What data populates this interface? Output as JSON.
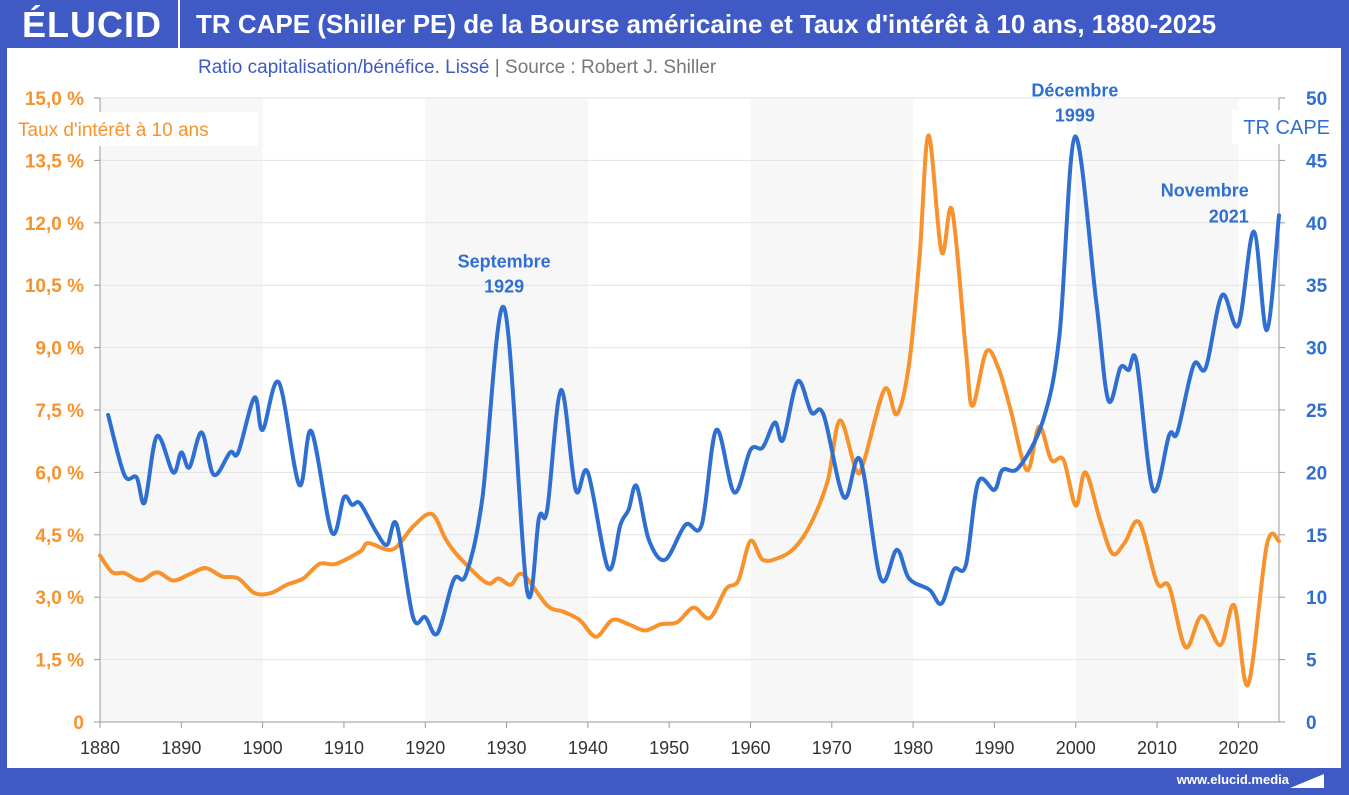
{
  "header": {
    "logo": "ÉLUCID",
    "title": "TR CAPE (Shiller PE) de la Bourse américaine et Taux d'intérêt à 10 ans, 1880-2025",
    "subtitle": "Ratio capitalisation/bénéfice. Lissé",
    "separator": "|",
    "source": "Source : Robert J. Shiller"
  },
  "footer": {
    "url": "www.elucid.media"
  },
  "colors": {
    "brand": "#3f5ac4",
    "cape": "#2f6fd1",
    "rate": "#f7922c",
    "band": "#f7f7f7",
    "grid": "#e3e3e3"
  },
  "chart_data": {
    "type": "line",
    "title": "TR CAPE (Shiller PE) de la Bourse américaine et Taux d'intérêt à 10 ans, 1880-2025",
    "xlim": [
      1880,
      2025
    ],
    "x_ticks": [
      "1880",
      "1890",
      "1900",
      "1910",
      "1920",
      "1930",
      "1940",
      "1950",
      "1960",
      "1970",
      "1980",
      "1990",
      "2000",
      "2010",
      "2020"
    ],
    "y_left": {
      "label": "Taux d'intérêt à 10 ans",
      "lim": [
        0,
        15
      ],
      "ticks": [
        "0",
        "1,5 %",
        "3,0 %",
        "4,5 %",
        "6,0 %",
        "7,5 %",
        "9,0 %",
        "10,5 %",
        "12,0 %",
        "13,5 %",
        "15,0 %"
      ]
    },
    "y_right": {
      "label": "TR CAPE",
      "lim": [
        0,
        50
      ],
      "ticks": [
        "0",
        "5",
        "10",
        "15",
        "20",
        "25",
        "30",
        "35",
        "40",
        "45",
        "50"
      ]
    },
    "grid": true,
    "shaded_periods": [
      [
        1880,
        1900
      ],
      [
        1920,
        1940
      ],
      [
        1960,
        1980
      ],
      [
        2000,
        2020
      ]
    ],
    "annotations": [
      {
        "line1": "Septembre",
        "line2": "1929",
        "year": 1929.7,
        "value": 33.2
      },
      {
        "line1": "Décembre",
        "line2": "1999",
        "year": 1999.9,
        "value": 46.9
      },
      {
        "line1": "Novembre",
        "line2": "2021",
        "year": 2021.9,
        "value": 39.3
      }
    ],
    "series": [
      {
        "name": "TR CAPE",
        "axis": "right",
        "points": [
          [
            1881,
            24.6
          ],
          [
            1883,
            19.8
          ],
          [
            1884.5,
            19.6
          ],
          [
            1885.5,
            17.6
          ],
          [
            1887,
            22.9
          ],
          [
            1889,
            20
          ],
          [
            1890,
            21.6
          ],
          [
            1891,
            20.4
          ],
          [
            1892.5,
            23.2
          ],
          [
            1894,
            19.8
          ],
          [
            1896,
            21.6
          ],
          [
            1897,
            21.6
          ],
          [
            1899,
            26
          ],
          [
            1900,
            23.4
          ],
          [
            1902,
            27.2
          ],
          [
            1904.5,
            19
          ],
          [
            1906,
            23.3
          ],
          [
            1908.5,
            15.2
          ],
          [
            1910,
            18
          ],
          [
            1911,
            17.4
          ],
          [
            1912,
            17.5
          ],
          [
            1914,
            15.2
          ],
          [
            1915.3,
            14.2
          ],
          [
            1916.5,
            15.8
          ],
          [
            1918.5,
            8.4
          ],
          [
            1920,
            8.4
          ],
          [
            1921.5,
            7.1
          ],
          [
            1923.5,
            11.4
          ],
          [
            1925,
            11.8
          ],
          [
            1927,
            17.8
          ],
          [
            1929.7,
            33.2
          ],
          [
            1932.5,
            10.6
          ],
          [
            1934,
            16.4
          ],
          [
            1935,
            17
          ],
          [
            1936.7,
            26.6
          ],
          [
            1938.5,
            18.6
          ],
          [
            1940,
            20
          ],
          [
            1942.5,
            12.3
          ],
          [
            1944,
            15.8
          ],
          [
            1945,
            17
          ],
          [
            1946,
            18.9
          ],
          [
            1947.5,
            14.6
          ],
          [
            1949.5,
            13
          ],
          [
            1952,
            15.8
          ],
          [
            1954,
            15.8
          ],
          [
            1955.8,
            23.4
          ],
          [
            1958,
            18.4
          ],
          [
            1960,
            21.8
          ],
          [
            1961.5,
            22
          ],
          [
            1963,
            24
          ],
          [
            1964,
            22.6
          ],
          [
            1965.8,
            27.3
          ],
          [
            1967.5,
            24.8
          ],
          [
            1969,
            24.6
          ],
          [
            1971.5,
            18
          ],
          [
            1973.5,
            21
          ],
          [
            1976,
            11.5
          ],
          [
            1978,
            13.8
          ],
          [
            1979.5,
            11.5
          ],
          [
            1982,
            10.6
          ],
          [
            1983.5,
            9.5
          ],
          [
            1985,
            12.2
          ],
          [
            1986.5,
            12.6
          ],
          [
            1988,
            19.2
          ],
          [
            1990,
            18.6
          ],
          [
            1991,
            20.2
          ],
          [
            1993,
            20.4
          ],
          [
            1996,
            24.2
          ],
          [
            1998,
            31
          ],
          [
            1999.9,
            46.9
          ],
          [
            2002.5,
            33.8
          ],
          [
            2004,
            25.8
          ],
          [
            2005.5,
            28.4
          ],
          [
            2006.5,
            28.2
          ],
          [
            2007.5,
            28.8
          ],
          [
            2009.5,
            18.6
          ],
          [
            2011.5,
            23
          ],
          [
            2012.5,
            23.2
          ],
          [
            2014.5,
            28.6
          ],
          [
            2016,
            28.4
          ],
          [
            2018,
            34.2
          ],
          [
            2020,
            31.8
          ],
          [
            2021.9,
            39.3
          ],
          [
            2023.5,
            31.4
          ],
          [
            2025,
            40.6
          ]
        ]
      },
      {
        "name": "Taux d'intérêt à 10 ans",
        "axis": "left",
        "points": [
          [
            1880,
            4.0
          ],
          [
            1881.5,
            3.6
          ],
          [
            1883,
            3.58
          ],
          [
            1885,
            3.4
          ],
          [
            1887,
            3.6
          ],
          [
            1889,
            3.4
          ],
          [
            1891,
            3.55
          ],
          [
            1893,
            3.7
          ],
          [
            1895,
            3.5
          ],
          [
            1897,
            3.45
          ],
          [
            1899,
            3.1
          ],
          [
            1901,
            3.1
          ],
          [
            1903,
            3.3
          ],
          [
            1905,
            3.45
          ],
          [
            1907,
            3.8
          ],
          [
            1909,
            3.8
          ],
          [
            1912,
            4.1
          ],
          [
            1913,
            4.3
          ],
          [
            1916,
            4.15
          ],
          [
            1918.5,
            4.7
          ],
          [
            1920.8,
            5.0
          ],
          [
            1922.5,
            4.4
          ],
          [
            1924,
            4.0
          ],
          [
            1927.5,
            3.35
          ],
          [
            1929,
            3.45
          ],
          [
            1930.5,
            3.3
          ],
          [
            1932,
            3.55
          ],
          [
            1935,
            2.8
          ],
          [
            1937,
            2.65
          ],
          [
            1939,
            2.45
          ],
          [
            1941,
            2.05
          ],
          [
            1943,
            2.45
          ],
          [
            1945,
            2.35
          ],
          [
            1947,
            2.2
          ],
          [
            1949,
            2.35
          ],
          [
            1951,
            2.4
          ],
          [
            1953,
            2.75
          ],
          [
            1955,
            2.5
          ],
          [
            1957,
            3.2
          ],
          [
            1958.5,
            3.4
          ],
          [
            1960,
            4.35
          ],
          [
            1961.5,
            3.9
          ],
          [
            1963.5,
            3.95
          ],
          [
            1965.5,
            4.2
          ],
          [
            1967.5,
            4.8
          ],
          [
            1969.5,
            5.8
          ],
          [
            1971,
            7.25
          ],
          [
            1973,
            6.05
          ],
          [
            1974,
            6.3
          ],
          [
            1976.5,
            8.0
          ],
          [
            1978,
            7.4
          ],
          [
            1979.5,
            8.6
          ],
          [
            1980.8,
            11.2
          ],
          [
            1981.9,
            14.1
          ],
          [
            1983.5,
            11.3
          ],
          [
            1984.8,
            12.3
          ],
          [
            1986.5,
            8.9
          ],
          [
            1987.3,
            7.6
          ],
          [
            1989,
            8.9
          ],
          [
            1990.5,
            8.5
          ],
          [
            1992,
            7.5
          ],
          [
            1994,
            6.05
          ],
          [
            1995.5,
            7.1
          ],
          [
            1997,
            6.3
          ],
          [
            1998.5,
            6.3
          ],
          [
            2000,
            5.2
          ],
          [
            2001.2,
            6.0
          ],
          [
            2003,
            4.85
          ],
          [
            2004.5,
            4.05
          ],
          [
            2006,
            4.3
          ],
          [
            2007.8,
            4.8
          ],
          [
            2010,
            3.35
          ],
          [
            2011.5,
            3.25
          ],
          [
            2013.5,
            1.8
          ],
          [
            2015.5,
            2.55
          ],
          [
            2017.8,
            1.85
          ],
          [
            2019.5,
            2.8
          ],
          [
            2021.2,
            0.9
          ],
          [
            2023.5,
            4.25
          ],
          [
            2025,
            4.35
          ]
        ]
      }
    ]
  }
}
